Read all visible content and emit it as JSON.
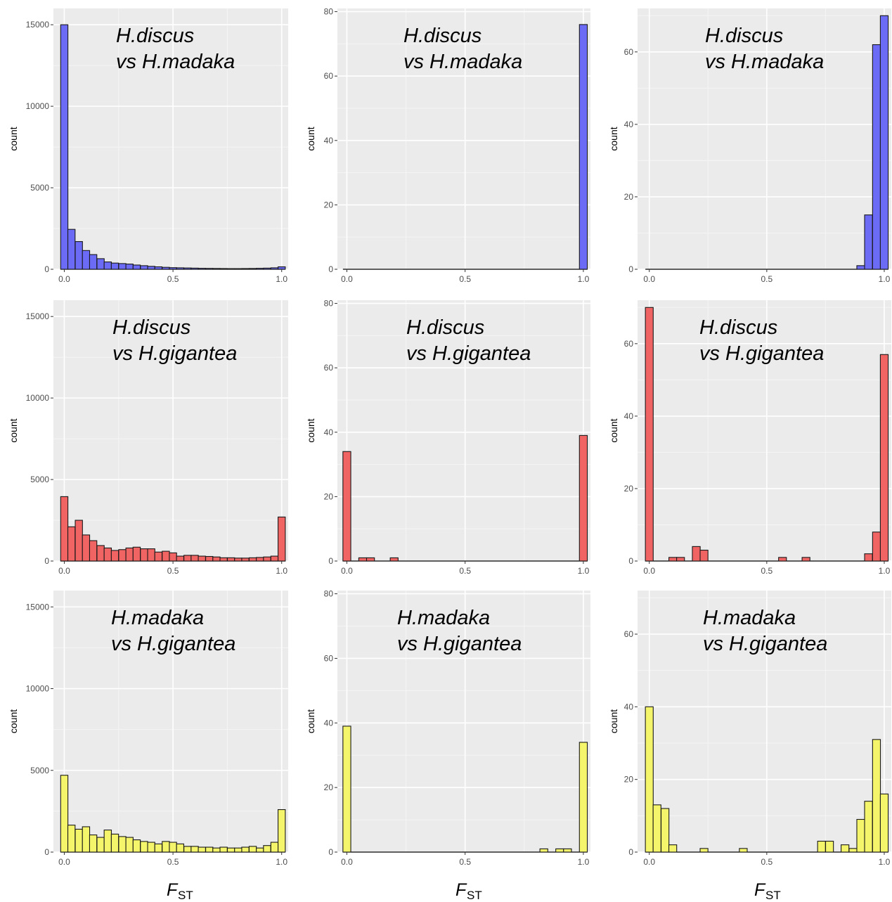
{
  "figure": {
    "fst_label": {
      "main": "F",
      "sub": "ST"
    }
  },
  "chart_data": [
    {
      "type": "bar",
      "label": [
        "H.discus",
        "vs H.madaka"
      ],
      "fill": "#6b6bf5",
      "ylabel": "count",
      "xlim": [
        -0.05,
        1.03
      ],
      "xticks": [
        "0.0",
        "0.5",
        "1.0"
      ],
      "ylim": [
        0,
        16000
      ],
      "yticks": [
        0,
        5000,
        10000,
        15000
      ],
      "bins_x": [
        0,
        0.033,
        0.067,
        0.1,
        0.133,
        0.167,
        0.2,
        0.233,
        0.267,
        0.3,
        0.333,
        0.367,
        0.4,
        0.433,
        0.467,
        0.5,
        0.533,
        0.567,
        0.6,
        0.633,
        0.667,
        0.7,
        0.733,
        0.767,
        0.8,
        0.833,
        0.867,
        0.9,
        0.933,
        0.967,
        1.0
      ],
      "values": [
        15000,
        2450,
        1700,
        1150,
        900,
        650,
        450,
        380,
        350,
        320,
        260,
        220,
        180,
        150,
        120,
        100,
        90,
        80,
        70,
        60,
        55,
        50,
        45,
        40,
        40,
        45,
        50,
        60,
        70,
        90,
        150
      ]
    },
    {
      "type": "bar",
      "label": [
        "H.discus",
        "vs H.madaka"
      ],
      "fill": "#6b6bf5",
      "ylabel": "count",
      "xlim": [
        -0.04,
        1.03
      ],
      "xticks": [
        "0.0",
        "0.5",
        "1.0"
      ],
      "ylim": [
        0,
        81
      ],
      "yticks": [
        0,
        20,
        40,
        60,
        80
      ],
      "bins_x": [
        0.0,
        1.0
      ],
      "values": [
        0,
        76
      ]
    },
    {
      "type": "bar",
      "label": [
        "H.discus",
        "vs H.madaka"
      ],
      "fill": "#6b6bf5",
      "ylabel": "count",
      "xlim": [
        -0.05,
        1.03
      ],
      "xticks": [
        "0.0",
        "0.5",
        "1.0"
      ],
      "ylim": [
        0,
        72
      ],
      "yticks": [
        0,
        20,
        40,
        60
      ],
      "bins_x": [
        0.0,
        0.9,
        0.933,
        0.967,
        1.0
      ],
      "values": [
        0,
        1,
        15,
        62,
        70
      ]
    },
    {
      "type": "bar",
      "label": [
        "H.discus",
        "vs H.gigantea"
      ],
      "fill": "#f06464",
      "ylabel": "count",
      "xlim": [
        -0.05,
        1.03
      ],
      "xticks": [
        "0.0",
        "0.5",
        "1.0"
      ],
      "ylim": [
        0,
        16000
      ],
      "yticks": [
        0,
        5000,
        10000,
        15000
      ],
      "bins_x": [
        0,
        0.033,
        0.067,
        0.1,
        0.133,
        0.167,
        0.2,
        0.233,
        0.267,
        0.3,
        0.333,
        0.367,
        0.4,
        0.433,
        0.467,
        0.5,
        0.533,
        0.567,
        0.6,
        0.633,
        0.667,
        0.7,
        0.733,
        0.767,
        0.8,
        0.833,
        0.867,
        0.9,
        0.933,
        0.967,
        1.0
      ],
      "values": [
        3950,
        2100,
        2500,
        1600,
        1250,
        950,
        800,
        650,
        700,
        800,
        850,
        750,
        750,
        550,
        600,
        500,
        300,
        350,
        350,
        300,
        280,
        250,
        200,
        200,
        180,
        180,
        200,
        220,
        250,
        300,
        2700
      ]
    },
    {
      "type": "bar",
      "label": [
        "H.discus",
        "vs H.gigantea"
      ],
      "fill": "#f06464",
      "ylabel": "count",
      "xlim": [
        -0.04,
        1.03
      ],
      "xticks": [
        "0.0",
        "0.5",
        "1.0"
      ],
      "ylim": [
        0,
        81
      ],
      "yticks": [
        0,
        20,
        40,
        60,
        80
      ],
      "bins_x": [
        0.0,
        0.067,
        0.1,
        0.2,
        1.0
      ],
      "values": [
        34,
        1,
        1,
        1,
        39
      ]
    },
    {
      "type": "bar",
      "label": [
        "H.discus",
        "vs H.gigantea"
      ],
      "fill": "#f06464",
      "ylabel": "count",
      "xlim": [
        -0.05,
        1.03
      ],
      "xticks": [
        "0.0",
        "0.5",
        "1.0"
      ],
      "ylim": [
        0,
        72
      ],
      "yticks": [
        0,
        20,
        40,
        60
      ],
      "bins_x": [
        0.0,
        0.1,
        0.133,
        0.2,
        0.233,
        0.567,
        0.667,
        0.933,
        0.967,
        1.0
      ],
      "values": [
        70,
        1,
        1,
        4,
        3,
        1,
        1,
        2,
        8,
        57
      ]
    },
    {
      "type": "bar",
      "label": [
        "H.madaka",
        "vs H.gigantea"
      ],
      "fill": "#f5f56b",
      "ylabel": "count",
      "xlim": [
        -0.05,
        1.03
      ],
      "xticks": [
        "0.0",
        "0.5",
        "1.0"
      ],
      "ylim": [
        0,
        16000
      ],
      "yticks": [
        0,
        5000,
        10000,
        15000
      ],
      "bins_x": [
        0,
        0.033,
        0.067,
        0.1,
        0.133,
        0.167,
        0.2,
        0.233,
        0.267,
        0.3,
        0.333,
        0.367,
        0.4,
        0.433,
        0.467,
        0.5,
        0.533,
        0.567,
        0.6,
        0.633,
        0.667,
        0.7,
        0.733,
        0.767,
        0.8,
        0.833,
        0.867,
        0.9,
        0.933,
        0.967,
        1.0
      ],
      "values": [
        4700,
        1650,
        1400,
        1550,
        1050,
        900,
        1350,
        1100,
        950,
        900,
        750,
        650,
        600,
        500,
        650,
        600,
        500,
        350,
        350,
        300,
        300,
        250,
        300,
        250,
        250,
        300,
        350,
        250,
        400,
        600,
        2600
      ]
    },
    {
      "type": "bar",
      "label": [
        "H.madaka",
        "vs H.gigantea"
      ],
      "fill": "#f5f56b",
      "ylabel": "count",
      "xlim": [
        -0.04,
        1.03
      ],
      "xticks": [
        "0.0",
        "0.5",
        "1.0"
      ],
      "ylim": [
        0,
        81
      ],
      "yticks": [
        0,
        20,
        40,
        60,
        80
      ],
      "bins_x": [
        0.0,
        0.833,
        0.9,
        0.933,
        1.0
      ],
      "values": [
        39,
        1,
        1,
        1,
        34
      ]
    },
    {
      "type": "bar",
      "label": [
        "H.madaka",
        "vs H.gigantea"
      ],
      "fill": "#f5f56b",
      "ylabel": "count",
      "xlim": [
        -0.05,
        1.03
      ],
      "xticks": [
        "0.0",
        "0.5",
        "1.0"
      ],
      "ylim": [
        0,
        72
      ],
      "yticks": [
        0,
        20,
        40,
        60
      ],
      "bins_x": [
        0.0,
        0.033,
        0.067,
        0.1,
        0.233,
        0.4,
        0.733,
        0.767,
        0.833,
        0.867,
        0.9,
        0.933,
        0.967,
        1.0
      ],
      "values": [
        40,
        13,
        12,
        2,
        1,
        1,
        3,
        3,
        2,
        1,
        9,
        14,
        31,
        16
      ]
    }
  ]
}
